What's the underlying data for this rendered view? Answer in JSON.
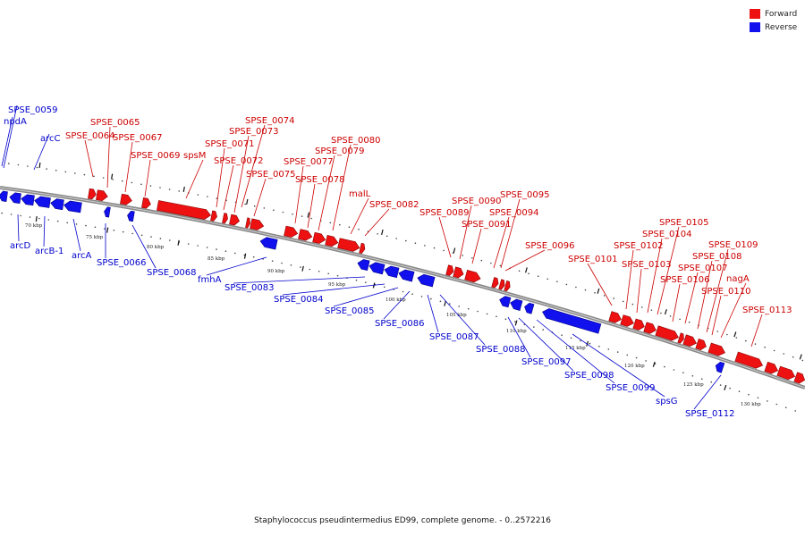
{
  "legend": [
    {
      "label": "Forward",
      "color": "#ee1111"
    },
    {
      "label": "Reverse",
      "color": "#1111ee"
    }
  ],
  "caption": "Staphylococcus pseudintermedius ED99, complete genome. - 0..2572216",
  "colors": {
    "forward": "#ee1111",
    "reverse": "#1111ee",
    "backbone": "#888888",
    "label_forward": "#cc0000",
    "label_reverse": "#0000cc"
  },
  "ticks": [
    "70 kbp",
    "75 kbp",
    "80 kbp",
    "85 kbp",
    "90 kbp",
    "95 kbp",
    "100 kbp",
    "105 kbp",
    "110 kbp",
    "115 kbp",
    "120 kbp",
    "125 kbp",
    "130 kbp"
  ],
  "forward_labels": [
    "SPSE_0064",
    "SPSE_0065",
    "SPSE_0067",
    "SPSE_0069",
    "spsM",
    "SPSE_0071",
    "SPSE_0072",
    "SPSE_0073",
    "SPSE_0074",
    "SPSE_0075",
    "SPSE_0077",
    "SPSE_0078",
    "SPSE_0079",
    "SPSE_0080",
    "malL",
    "SPSE_0082",
    "SPSE_0089",
    "SPSE_0090",
    "SPSE_0091",
    "SPSE_0094",
    "SPSE_0095",
    "SPSE_0096",
    "SPSE_0101",
    "SPSE_0102",
    "SPSE_0103",
    "SPSE_0104",
    "SPSE_0105",
    "SPSE_0106",
    "SPSE_0107",
    "SPSE_0108",
    "SPSE_0109",
    "SPSE_0110",
    "nagA",
    "SPSE_0113"
  ],
  "reverse_labels": [
    "SPSE_0059",
    "npdA",
    "arcC",
    "arcD",
    "arcB-1",
    "arcA",
    "SPSE_0066",
    "SPSE_0068",
    "fmhA",
    "SPSE_0083",
    "SPSE_0084",
    "SPSE_0085",
    "SPSE_0086",
    "SPSE_0087",
    "SPSE_0088",
    "SPSE_0097",
    "SPSE_0098",
    "SPSE_0099",
    "spsG",
    "SPSE_0112"
  ]
}
